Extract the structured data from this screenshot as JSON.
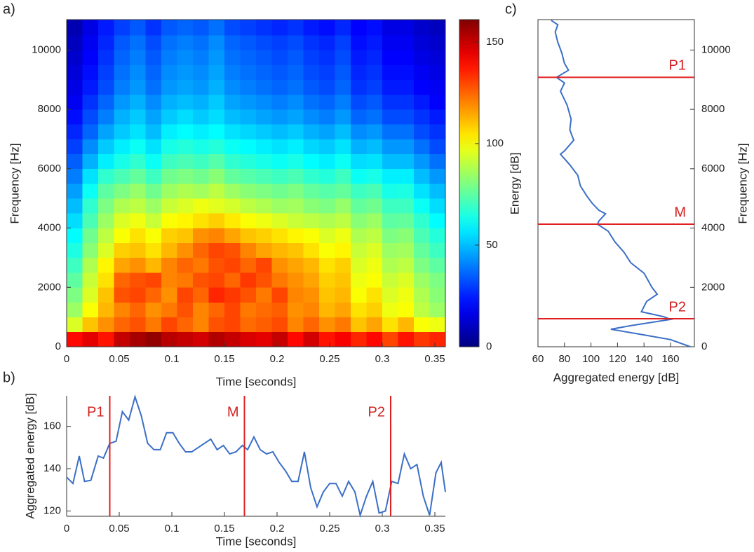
{
  "chart_data": [
    {
      "type": "heatmap",
      "panel": "a)",
      "xlabel": "Time [seconds]",
      "ylabel": "Frequency [Hz]",
      "colorbar_label": "Energy [dB]",
      "colormap": "jet",
      "xlim": [
        0,
        0.36
      ],
      "ylim": [
        0,
        11025
      ],
      "clim": [
        0,
        161
      ],
      "xticks": [
        0,
        0.05,
        0.1,
        0.15,
        0.2,
        0.25,
        0.3,
        0.35
      ],
      "yticks": [
        0,
        2000,
        4000,
        6000,
        8000,
        10000
      ],
      "cticks": [
        0,
        50,
        100,
        150
      ],
      "xbins": [
        0,
        0.015,
        0.03,
        0.045,
        0.06,
        0.075,
        0.09,
        0.105,
        0.12,
        0.135,
        0.15,
        0.165,
        0.18,
        0.195,
        0.21,
        0.225,
        0.24,
        0.255,
        0.27,
        0.285,
        0.3,
        0.315,
        0.33,
        0.345,
        0.36
      ],
      "ybins": [
        0,
        500,
        1000,
        1500,
        2000,
        2500,
        3000,
        3500,
        4000,
        4500,
        5000,
        5500,
        6000,
        6500,
        7000,
        7500,
        8000,
        8500,
        9000,
        9500,
        10000,
        10500,
        11025
      ],
      "values": [
        [
          140,
          145,
          138,
          150,
          155,
          158,
          152,
          150,
          148,
          153,
          150,
          147,
          145,
          150,
          140,
          148,
          138,
          142,
          135,
          140,
          130,
          138,
          132,
          135
        ],
        [
          95,
          110,
          118,
          125,
          128,
          122,
          130,
          125,
          120,
          128,
          130,
          124,
          126,
          129,
          120,
          125,
          118,
          122,
          110,
          115,
          105,
          112,
          100,
          98
        ],
        [
          85,
          100,
          112,
          120,
          125,
          118,
          122,
          128,
          120,
          125,
          130,
          122,
          124,
          126,
          118,
          120,
          112,
          115,
          105,
          108,
          98,
          100,
          90,
          85
        ],
        [
          80,
          95,
          110,
          128,
          130,
          125,
          118,
          130,
          125,
          135,
          132,
          128,
          122,
          130,
          120,
          118,
          110,
          112,
          100,
          105,
          95,
          98,
          88,
          82
        ],
        [
          75,
          92,
          105,
          125,
          128,
          130,
          120,
          122,
          128,
          130,
          125,
          132,
          128,
          122,
          118,
          115,
          108,
          110,
          98,
          100,
          92,
          95,
          85,
          80
        ],
        [
          70,
          88,
          102,
          115,
          118,
          112,
          120,
          125,
          122,
          128,
          130,
          125,
          130,
          118,
          115,
          112,
          105,
          108,
          95,
          98,
          88,
          90,
          80,
          75
        ],
        [
          65,
          82,
          95,
          108,
          110,
          105,
          112,
          118,
          125,
          130,
          128,
          120,
          115,
          112,
          110,
          105,
          100,
          102,
          92,
          95,
          85,
          86,
          76,
          70
        ],
        [
          60,
          78,
          90,
          100,
          105,
          100,
          108,
          110,
          118,
          120,
          115,
          110,
          108,
          105,
          102,
          100,
          95,
          98,
          88,
          90,
          80,
          82,
          72,
          66
        ],
        [
          55,
          72,
          85,
          95,
          98,
          92,
          100,
          102,
          105,
          108,
          104,
          100,
          98,
          95,
          92,
          90,
          88,
          90,
          82,
          85,
          75,
          76,
          68,
          60
        ],
        [
          50,
          68,
          80,
          88,
          90,
          85,
          92,
          95,
          98,
          96,
          94,
          90,
          88,
          85,
          86,
          82,
          80,
          84,
          76,
          78,
          70,
          70,
          62,
          55
        ],
        [
          45,
          62,
          75,
          80,
          84,
          78,
          85,
          88,
          86,
          90,
          85,
          82,
          80,
          78,
          80,
          76,
          74,
          76,
          70,
          72,
          64,
          65,
          56,
          50
        ],
        [
          40,
          56,
          68,
          72,
          76,
          70,
          78,
          80,
          78,
          82,
          76,
          74,
          72,
          70,
          72,
          68,
          66,
          70,
          62,
          64,
          58,
          58,
          50,
          44
        ],
        [
          35,
          48,
          58,
          64,
          68,
          62,
          70,
          72,
          70,
          74,
          68,
          66,
          64,
          62,
          64,
          60,
          58,
          62,
          55,
          56,
          50,
          50,
          44,
          38
        ],
        [
          30,
          42,
          52,
          58,
          62,
          56,
          64,
          66,
          64,
          66,
          62,
          60,
          58,
          56,
          58,
          54,
          52,
          56,
          48,
          50,
          44,
          44,
          38,
          32
        ],
        [
          26,
          36,
          46,
          52,
          56,
          50,
          58,
          60,
          58,
          60,
          56,
          54,
          52,
          50,
          52,
          48,
          46,
          50,
          42,
          44,
          38,
          38,
          32,
          28
        ],
        [
          22,
          32,
          40,
          48,
          52,
          46,
          52,
          55,
          52,
          55,
          50,
          48,
          46,
          44,
          46,
          42,
          40,
          44,
          36,
          38,
          32,
          32,
          28,
          24
        ],
        [
          18,
          28,
          36,
          44,
          48,
          42,
          48,
          50,
          48,
          52,
          46,
          44,
          42,
          40,
          42,
          38,
          36,
          40,
          32,
          34,
          28,
          28,
          24,
          20
        ],
        [
          16,
          24,
          32,
          40,
          44,
          38,
          44,
          46,
          44,
          48,
          42,
          40,
          38,
          36,
          38,
          34,
          32,
          36,
          28,
          30,
          24,
          24,
          20,
          18
        ],
        [
          14,
          22,
          30,
          38,
          42,
          36,
          42,
          44,
          42,
          46,
          40,
          38,
          36,
          34,
          36,
          32,
          30,
          34,
          26,
          28,
          22,
          22,
          18,
          16
        ],
        [
          12,
          20,
          28,
          36,
          40,
          34,
          40,
          42,
          40,
          44,
          38,
          36,
          34,
          32,
          34,
          30,
          28,
          32,
          24,
          26,
          20,
          20,
          16,
          14
        ],
        [
          10,
          18,
          26,
          34,
          38,
          32,
          38,
          40,
          38,
          42,
          36,
          34,
          32,
          30,
          32,
          28,
          26,
          30,
          22,
          24,
          18,
          18,
          14,
          12
        ],
        [
          8,
          16,
          24,
          30,
          34,
          28,
          34,
          36,
          34,
          38,
          32,
          30,
          28,
          26,
          28,
          24,
          22,
          26,
          20,
          22,
          16,
          16,
          12,
          10
        ]
      ]
    },
    {
      "type": "line",
      "panel": "b)",
      "xlabel": "Time [seconds]",
      "ylabel": "Aggregated energy [dB]",
      "color": "#3b6fc6",
      "marker_color": "#e02020",
      "xlim": [
        0,
        0.36
      ],
      "ylim": [
        117.5,
        174.5
      ],
      "xticks": [
        0,
        0.05,
        0.1,
        0.15,
        0.2,
        0.25,
        0.3,
        0.35
      ],
      "yticks": [
        120,
        140,
        160
      ],
      "x": [
        0,
        0.006,
        0.012,
        0.017,
        0.023,
        0.03,
        0.035,
        0.041,
        0.047,
        0.053,
        0.059,
        0.065,
        0.071,
        0.077,
        0.083,
        0.089,
        0.095,
        0.101,
        0.107,
        0.113,
        0.119,
        0.125,
        0.131,
        0.137,
        0.143,
        0.149,
        0.155,
        0.161,
        0.167,
        0.172,
        0.178,
        0.184,
        0.19,
        0.196,
        0.202,
        0.208,
        0.214,
        0.22,
        0.226,
        0.232,
        0.238,
        0.244,
        0.25,
        0.256,
        0.262,
        0.268,
        0.274,
        0.279,
        0.285,
        0.291,
        0.297,
        0.303,
        0.309,
        0.315,
        0.321,
        0.327,
        0.333,
        0.339,
        0.345,
        0.351,
        0.356,
        0.36
      ],
      "values": [
        136,
        133,
        146,
        134,
        134.5,
        146,
        145,
        152,
        153,
        167,
        163,
        174,
        165,
        152,
        149,
        149,
        157,
        157,
        152,
        148,
        148,
        150,
        152,
        154,
        149,
        151,
        147,
        148,
        151,
        149,
        155,
        149,
        147,
        148,
        143,
        139,
        134,
        134,
        148,
        131,
        122,
        129,
        133,
        133,
        127,
        134,
        129,
        118,
        127,
        134,
        119,
        120,
        134,
        133,
        147,
        140,
        142,
        127,
        118,
        138,
        143,
        129
      ],
      "vlines": [
        {
          "x": 0.041,
          "label": "P1"
        },
        {
          "x": 0.169,
          "label": "M"
        },
        {
          "x": 0.308,
          "label": "P2"
        }
      ]
    },
    {
      "type": "line",
      "orientation": "vertical",
      "panel": "c)",
      "xlabel": "Aggregated energy [dB]",
      "ylabel": "Frequency [Hz]",
      "color": "#3b6fc6",
      "marker_color": "#e02020",
      "xlim": [
        60,
        178
      ],
      "ylim": [
        0,
        11025
      ],
      "xticks": [
        60,
        80,
        100,
        120,
        140,
        160
      ],
      "yticks": [
        0,
        2000,
        4000,
        6000,
        8000,
        10000
      ],
      "y": [
        11000,
        10850,
        10610,
        10260,
        9900,
        9550,
        9320,
        9080,
        8890,
        8610,
        8140,
        7670,
        7310,
        6960,
        6600,
        6490,
        6130,
        5780,
        5420,
        5070,
        4830,
        4600,
        4480,
        4240,
        4130,
        3890,
        3540,
        3180,
        2830,
        2480,
        2240,
        2000,
        1770,
        1530,
        1180,
        1010,
        920,
        710,
        590,
        400,
        240,
        0
      ],
      "values": [
        70,
        75,
        73,
        75,
        78,
        80,
        83,
        74,
        80,
        77,
        82,
        85,
        84,
        87,
        80,
        77,
        84,
        90,
        92,
        97,
        101,
        106,
        111,
        106,
        105,
        113,
        118,
        125,
        130,
        140,
        143,
        146,
        150,
        142,
        138,
        155,
        160,
        130,
        115,
        140,
        160,
        175
      ],
      "hlines": [
        {
          "y": 9080,
          "label": "P1"
        },
        {
          "y": 4130,
          "label": "M"
        },
        {
          "y": 943,
          "label": "P2"
        }
      ]
    }
  ]
}
